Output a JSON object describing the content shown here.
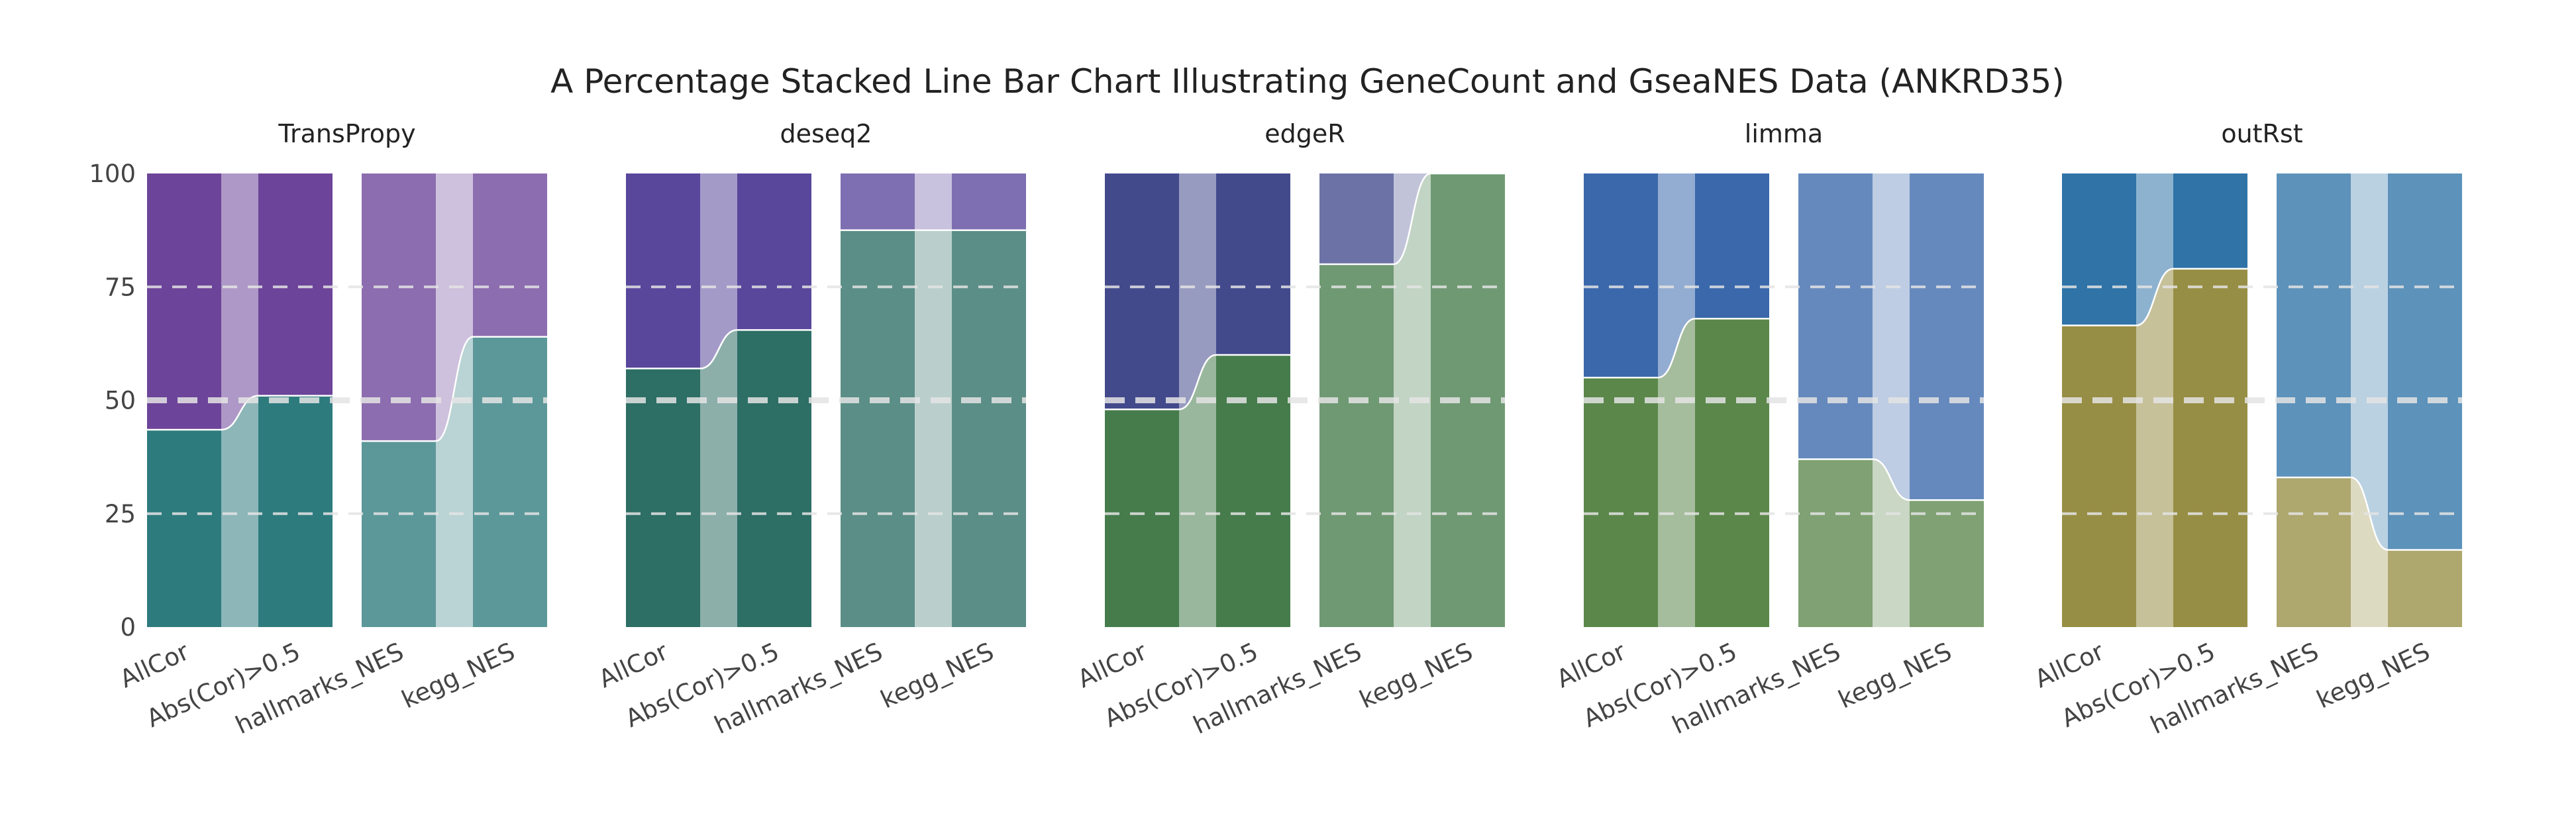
{
  "chart_data": {
    "type": "bar",
    "title": "A Percentage Stacked Line Bar Chart Illustrating GeneCount and GseaNES Data (ANKRD35)",
    "ylim": [
      0,
      100
    ],
    "yticks": [
      "0",
      "25",
      "50",
      "75",
      "100"
    ],
    "grid": true,
    "categories": [
      "AllCor",
      "Abs(Cor)>0.5",
      "hallmarks_NES",
      "kegg_NES"
    ],
    "panels": [
      {
        "name": "TransPropy",
        "colors": {
          "bottom": "#2E7B7E",
          "top": "#6C4499"
        },
        "groups": [
          {
            "left": {
              "label": "AllCor",
              "bottom": 43.5
            },
            "right": {
              "label": "Abs(Cor)>0.5",
              "bottom": 51
            }
          },
          {
            "left": {
              "label": "hallmarks_NES",
              "bottom": 41
            },
            "right": {
              "label": "kegg_NES",
              "bottom": 64
            }
          }
        ]
      },
      {
        "name": "deseq2",
        "colors": {
          "bottom": "#2D6E65",
          "top": "#58479B"
        },
        "groups": [
          {
            "left": {
              "label": "AllCor",
              "bottom": 57
            },
            "right": {
              "label": "Abs(Cor)>0.5",
              "bottom": 65.5
            }
          },
          {
            "left": {
              "label": "hallmarks_NES",
              "bottom": 87.5
            },
            "right": {
              "label": "kegg_NES",
              "bottom": 87.5
            }
          }
        ]
      },
      {
        "name": "edgeR",
        "colors": {
          "bottom": "#467C4C",
          "top": "#434A8C"
        },
        "groups": [
          {
            "left": {
              "label": "AllCor",
              "bottom": 48
            },
            "right": {
              "label": "Abs(Cor)>0.5",
              "bottom": 60
            }
          },
          {
            "left": {
              "label": "hallmarks_NES",
              "bottom": 80
            },
            "right": {
              "label": "kegg_NES",
              "bottom": 100
            }
          }
        ]
      },
      {
        "name": "limma",
        "colors": {
          "bottom": "#5B874B",
          "top": "#3A68AB"
        },
        "groups": [
          {
            "left": {
              "label": "AllCor",
              "bottom": 55
            },
            "right": {
              "label": "Abs(Cor)>0.5",
              "bottom": 68
            }
          },
          {
            "left": {
              "label": "hallmarks_NES",
              "bottom": 37
            },
            "right": {
              "label": "kegg_NES",
              "bottom": 28
            }
          }
        ]
      },
      {
        "name": "outRst",
        "colors": {
          "bottom": "#978E45",
          "top": "#2F73A7"
        },
        "groups": [
          {
            "left": {
              "label": "AllCor",
              "bottom": 66.5
            },
            "right": {
              "label": "Abs(Cor)>0.5",
              "bottom": 79
            }
          },
          {
            "left": {
              "label": "hallmarks_NES",
              "bottom": 33
            },
            "right": {
              "label": "kegg_NES",
              "bottom": 17
            }
          }
        ]
      }
    ]
  }
}
